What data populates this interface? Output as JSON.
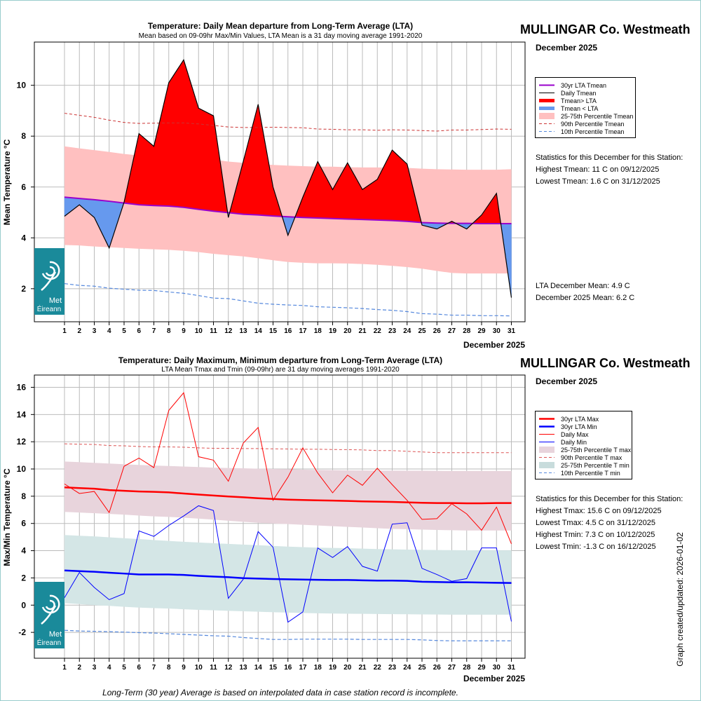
{
  "chart_data": [
    {
      "type": "area",
      "title": "Temperature: Daily Mean departure from Long-Term Average (LTA)",
      "subtitle": "Mean based on 09-09hr Max/Min Values, LTA Mean is a 31 day moving average 1991-2020",
      "ylabel": "Mean Temperature °C",
      "xlabel": "December 2025",
      "ylim": [
        0.7,
        11.7
      ],
      "yticks": [
        2,
        4,
        6,
        8,
        10
      ],
      "x": [
        1,
        2,
        3,
        4,
        5,
        6,
        7,
        8,
        9,
        10,
        11,
        12,
        13,
        14,
        15,
        16,
        17,
        18,
        19,
        20,
        21,
        22,
        23,
        24,
        25,
        26,
        27,
        28,
        29,
        30,
        31
      ],
      "x_tick_labels": [
        "1",
        "2",
        "3",
        "4",
        "5",
        "6",
        "7",
        "8",
        "9",
        "10",
        "11",
        "12",
        "13",
        "14",
        "15",
        "16",
        "17",
        "18",
        "19",
        "20",
        "21",
        "22",
        "23",
        "24",
        "25",
        "26",
        "27",
        "28",
        "29",
        "30",
        "31"
      ],
      "series": [
        {
          "name": "30yr LTA Tmean",
          "color": "#9900cc",
          "values": [
            5.6,
            5.55,
            5.5,
            5.44,
            5.37,
            5.3,
            5.27,
            5.25,
            5.2,
            5.12,
            5.05,
            4.99,
            4.93,
            4.9,
            4.86,
            4.83,
            4.8,
            4.78,
            4.76,
            4.74,
            4.72,
            4.7,
            4.68,
            4.65,
            4.6,
            4.58,
            4.57,
            4.57,
            4.56,
            4.56,
            4.56
          ]
        },
        {
          "name": "Daily Tmean",
          "color": "#000000",
          "values": [
            4.85,
            5.3,
            4.8,
            3.6,
            5.4,
            8.1,
            7.6,
            10.1,
            11.0,
            9.1,
            8.8,
            4.8,
            7.0,
            9.25,
            6.0,
            4.1,
            5.6,
            7.0,
            5.9,
            6.95,
            5.9,
            6.3,
            7.45,
            6.9,
            4.5,
            4.35,
            4.65,
            4.35,
            4.9,
            5.75,
            1.65
          ]
        },
        {
          "name": "90th Percentile Tmean",
          "color": "#cc3333",
          "values": [
            8.9,
            8.82,
            8.74,
            8.63,
            8.54,
            8.5,
            8.51,
            8.52,
            8.52,
            8.48,
            8.42,
            8.36,
            8.34,
            8.34,
            8.35,
            8.34,
            8.33,
            8.28,
            8.27,
            8.25,
            8.25,
            8.23,
            8.25,
            8.24,
            8.22,
            8.2,
            8.24,
            8.24,
            8.26,
            8.28,
            8.27
          ]
        },
        {
          "name": "10th Percentile Tmean",
          "color": "#5588dd",
          "values": [
            2.2,
            2.13,
            2.1,
            2.02,
            1.98,
            1.94,
            1.93,
            1.87,
            1.82,
            1.73,
            1.63,
            1.61,
            1.52,
            1.43,
            1.39,
            1.36,
            1.34,
            1.29,
            1.27,
            1.25,
            1.22,
            1.18,
            1.15,
            1.1,
            1.02,
            1.0,
            0.96,
            0.96,
            0.94,
            0.94,
            0.93
          ]
        }
      ],
      "band": {
        "name": "25-75th Percentile Tmean",
        "color": "#ffc0c0",
        "low": [
          3.72,
          3.7,
          3.66,
          3.63,
          3.6,
          3.57,
          3.55,
          3.53,
          3.49,
          3.44,
          3.37,
          3.32,
          3.27,
          3.2,
          3.12,
          3.05,
          3.02,
          3.0,
          3.0,
          2.99,
          2.97,
          2.94,
          2.9,
          2.85,
          2.79,
          2.7,
          2.62,
          2.6,
          2.6,
          2.6,
          2.6
        ],
        "high": [
          7.6,
          7.52,
          7.45,
          7.38,
          7.3,
          7.24,
          7.2,
          7.18,
          7.2,
          7.15,
          7.08,
          7.0,
          6.95,
          6.9,
          6.87,
          6.84,
          6.82,
          6.8,
          6.8,
          6.78,
          6.77,
          6.77,
          6.76,
          6.75,
          6.72,
          6.7,
          6.69,
          6.68,
          6.68,
          6.68,
          6.7
        ]
      },
      "fill_above_color": "#ff0000",
      "fill_below_color": "#6699ee",
      "legend": [
        {
          "label": "30yr LTA Tmean",
          "kind": "line",
          "color": "#9900cc",
          "width": 2
        },
        {
          "label": "Daily Tmean",
          "kind": "line",
          "color": "#000000",
          "width": 1
        },
        {
          "label": "Tmean> LTA",
          "kind": "line",
          "color": "#ff0000",
          "width": 5
        },
        {
          "label": "Tmean < LTA",
          "kind": "line",
          "color": "#6699ee",
          "width": 5
        },
        {
          "label": "25-75th Percentile Tmean",
          "kind": "box",
          "color": "#ffc0c0"
        },
        {
          "label": "90th Percentile Tmean",
          "kind": "dash",
          "color": "#cc3333"
        },
        {
          "label": "10th Percentile Tmean",
          "kind": "dash",
          "color": "#5588dd"
        }
      ],
      "legend_position": "right"
    },
    {
      "type": "line",
      "title": "Temperature: Daily Maximum, Minimum departure from Long-Term Average (LTA)",
      "subtitle": "LTA Mean Tmax and Tmin (09-09hr) are 31 day moving averages 1991-2020",
      "ylabel": "Max/Min Temperature °C",
      "xlabel": "December 2025",
      "ylim": [
        -3.9,
        16.9
      ],
      "yticks": [
        -2,
        0,
        2,
        4,
        6,
        8,
        10,
        12,
        14,
        16
      ],
      "x": [
        1,
        2,
        3,
        4,
        5,
        6,
        7,
        8,
        9,
        10,
        11,
        12,
        13,
        14,
        15,
        16,
        17,
        18,
        19,
        20,
        21,
        22,
        23,
        24,
        25,
        26,
        27,
        28,
        29,
        30,
        31
      ],
      "x_tick_labels": [
        "1",
        "2",
        "3",
        "4",
        "5",
        "6",
        "7",
        "8",
        "9",
        "10",
        "11",
        "12",
        "13",
        "14",
        "15",
        "16",
        "17",
        "18",
        "19",
        "20",
        "21",
        "22",
        "23",
        "24",
        "25",
        "26",
        "27",
        "28",
        "29",
        "30",
        "31"
      ],
      "series": [
        {
          "name": "30yr LTA Max",
          "color": "#ff0000",
          "values": [
            8.65,
            8.6,
            8.55,
            8.45,
            8.4,
            8.35,
            8.32,
            8.28,
            8.2,
            8.12,
            8.05,
            7.98,
            7.92,
            7.85,
            7.8,
            7.75,
            7.72,
            7.7,
            7.68,
            7.65,
            7.62,
            7.6,
            7.58,
            7.55,
            7.52,
            7.5,
            7.5,
            7.48,
            7.48,
            7.5,
            7.5
          ]
        },
        {
          "name": "30yr LTA Min",
          "color": "#0000ff",
          "values": [
            2.55,
            2.5,
            2.45,
            2.38,
            2.32,
            2.25,
            2.25,
            2.25,
            2.22,
            2.15,
            2.1,
            2.05,
            1.98,
            1.95,
            1.92,
            1.9,
            1.88,
            1.86,
            1.85,
            1.85,
            1.82,
            1.8,
            1.8,
            1.78,
            1.72,
            1.7,
            1.68,
            1.68,
            1.66,
            1.64,
            1.63
          ]
        },
        {
          "name": "Daily Max",
          "color": "#ff0000",
          "values": [
            8.9,
            8.2,
            8.35,
            6.8,
            10.2,
            10.8,
            10.1,
            14.3,
            15.6,
            10.9,
            10.65,
            9.1,
            11.9,
            13.05,
            7.7,
            9.4,
            11.55,
            9.7,
            8.25,
            9.55,
            8.8,
            10.05,
            8.85,
            7.7,
            6.3,
            6.35,
            7.45,
            6.7,
            5.5,
            7.2,
            4.5
          ]
        },
        {
          "name": "Daily Min",
          "color": "#0000ff",
          "values": [
            0.55,
            2.4,
            1.3,
            0.4,
            0.85,
            5.45,
            5.05,
            5.85,
            6.55,
            7.3,
            6.95,
            0.5,
            1.9,
            5.4,
            4.25,
            -1.25,
            -0.5,
            4.2,
            3.5,
            4.3,
            2.85,
            2.5,
            5.95,
            6.05,
            2.7,
            2.25,
            1.75,
            1.95,
            4.2,
            4.2,
            -1.2
          ]
        },
        {
          "name": "90th Percentile T max",
          "color": "#dd5555",
          "values": [
            11.85,
            11.82,
            11.8,
            11.72,
            11.7,
            11.65,
            11.62,
            11.62,
            11.6,
            11.55,
            11.52,
            11.52,
            11.5,
            11.5,
            11.48,
            11.47,
            11.45,
            11.45,
            11.43,
            11.42,
            11.4,
            11.35,
            11.35,
            11.3,
            11.25,
            11.2,
            11.2,
            11.2,
            11.2,
            11.2,
            11.2
          ]
        },
        {
          "name": "10th Percentile T min",
          "color": "#5588dd",
          "values": [
            -1.85,
            -1.9,
            -1.92,
            -1.95,
            -1.98,
            -2.02,
            -2.05,
            -2.1,
            -2.15,
            -2.2,
            -2.25,
            -2.28,
            -2.38,
            -2.45,
            -2.52,
            -2.52,
            -2.5,
            -2.5,
            -2.5,
            -2.5,
            -2.52,
            -2.52,
            -2.52,
            -2.52,
            -2.55,
            -2.6,
            -2.62,
            -2.62,
            -2.62,
            -2.62,
            -2.62
          ]
        }
      ],
      "bands": [
        {
          "name": "25-75th Percentile T max",
          "color": "#e8d4dc",
          "low": [
            6.85,
            6.8,
            6.75,
            6.7,
            6.65,
            6.58,
            6.52,
            6.48,
            6.42,
            6.35,
            6.28,
            6.2,
            6.12,
            6.05,
            6.0,
            5.95,
            5.9,
            5.85,
            5.8,
            5.75,
            5.7,
            5.65,
            5.6,
            5.58,
            5.55,
            5.52,
            5.5,
            5.48,
            5.48,
            5.48,
            5.48
          ],
          "high": [
            10.55,
            10.5,
            10.45,
            10.4,
            10.35,
            10.3,
            10.25,
            10.22,
            10.18,
            10.14,
            10.1,
            10.07,
            10.05,
            10.02,
            10.0,
            9.98,
            9.95,
            9.93,
            9.92,
            9.9,
            9.89,
            9.88,
            9.88,
            9.87,
            9.87,
            9.86,
            9.85,
            9.85,
            9.85,
            9.85,
            9.85
          ]
        },
        {
          "name": "25-75th Percentile T min",
          "color": "#d4e6e6",
          "low": [
            0.15,
            0.08,
            0.0,
            -0.05,
            -0.12,
            -0.18,
            -0.22,
            -0.25,
            -0.3,
            -0.35,
            -0.38,
            -0.42,
            -0.45,
            -0.48,
            -0.52,
            -0.55,
            -0.58,
            -0.6,
            -0.62,
            -0.63,
            -0.64,
            -0.65,
            -0.66,
            -0.67,
            -0.68,
            -0.69,
            -0.7,
            -0.7,
            -0.7,
            -0.7,
            -0.7
          ],
          "high": [
            5.15,
            5.1,
            5.05,
            4.98,
            4.92,
            4.85,
            4.78,
            4.72,
            4.65,
            4.6,
            4.55,
            4.5,
            4.45,
            4.4,
            4.35,
            4.3,
            4.26,
            4.22,
            4.2,
            4.18,
            4.15,
            4.12,
            4.1,
            4.08,
            4.06,
            4.05,
            4.04,
            4.03,
            4.02,
            4.02,
            4.02
          ]
        }
      ],
      "legend": [
        {
          "label": "30yr LTA Max",
          "kind": "line",
          "color": "#ff0000",
          "width": 2.5
        },
        {
          "label": "30yr LTA Min",
          "kind": "line",
          "color": "#0000ff",
          "width": 2.5
        },
        {
          "label": "Daily Max",
          "kind": "line",
          "color": "#ff0000",
          "width": 1
        },
        {
          "label": "Daily Min",
          "kind": "line",
          "color": "#0000ff",
          "width": 1
        },
        {
          "label": "25-75th Percentile T max",
          "kind": "box",
          "color": "#e8d4dc"
        },
        {
          "label": "90th Percentile T max",
          "kind": "dash",
          "color": "#dd5555"
        },
        {
          "label": "25-75th Percentile T min",
          "kind": "box",
          "color": "#c8dcdc"
        },
        {
          "label": "10th Percentile T min",
          "kind": "dash",
          "color": "#5588dd"
        }
      ],
      "legend_position": "right"
    }
  ],
  "top": {
    "station": "MULLINGAR Co. Westmeath",
    "month": "December 2025",
    "stats_heading": "Statistics for this December for this Station:",
    "stats": [
      "Highest Tmean: 11 C on 09/12/2025",
      "Lowest Tmean: 1.6 C on 31/12/2025"
    ],
    "lta_mean": "LTA December Mean: 4.9 C",
    "month_mean": "December 2025 Mean: 6.2 C"
  },
  "bottom": {
    "station": "MULLINGAR Co. Westmeath",
    "month": "December 2025",
    "stats_heading": "Statistics for this December for this Station:",
    "stats": [
      "Highest Tmax: 15.6 C on 09/12/2025",
      "Lowest Tmax: 4.5 C on 31/12/2025",
      "Highest Tmin: 7.3 C on 10/12/2025",
      "Lowest Tmin: -1.3 C on 16/12/2025"
    ]
  },
  "logo": {
    "line1": "Met",
    "line2": "Éireann",
    "bg_color": "#1a8a9a"
  },
  "footnote": "Long-Term (30 year) Average is based on interpolated data in case station record is incomplete.",
  "updated": "Graph created/updated:  2026-01-02"
}
